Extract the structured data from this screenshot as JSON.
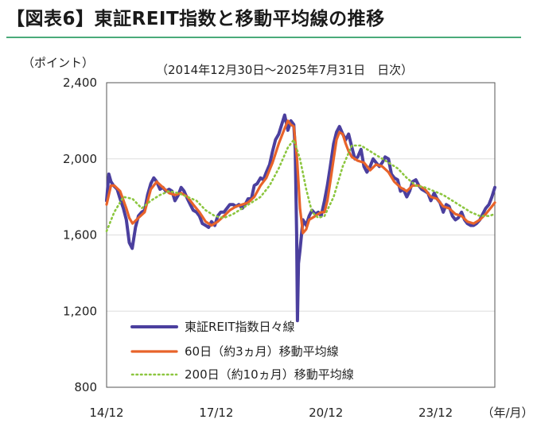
{
  "header": {
    "title": "【図表6】東証REIT指数と移動平均線の推移",
    "y_unit": "（ポイント）",
    "subtitle": "（2014年12月30日～2025年7月31日　日次）"
  },
  "colors": {
    "rule": "#4aaa7a",
    "daily": "#4b3f9e",
    "ma60": "#e8632a",
    "ma200": "#8cc63f"
  },
  "chart_data": {
    "type": "line",
    "title": "東証REIT指数と移動平均線の推移",
    "ylabel": "（ポイント）",
    "xlabel": "（年/月）",
    "ylim": [
      800,
      2400
    ],
    "xlim": [
      2014.96,
      2025.58
    ],
    "yticks": [
      {
        "v": 800,
        "label": "800"
      },
      {
        "v": 1200,
        "label": "1,200"
      },
      {
        "v": 1600,
        "label": "1,600"
      },
      {
        "v": 2000,
        "label": "2,000"
      },
      {
        "v": 2400,
        "label": "2,400"
      }
    ],
    "xticks": [
      {
        "v": 2014.96,
        "label": "14/12"
      },
      {
        "v": 2017.96,
        "label": "17/12"
      },
      {
        "v": 2020.96,
        "label": "20/12"
      },
      {
        "v": 2023.96,
        "label": "23/12"
      }
    ],
    "x_unit_label": "（年/月）",
    "legend": "bottom-left",
    "series": [
      {
        "name": "東証REIT指数日々線",
        "style": "solid-thick",
        "points": [
          [
            2014.96,
            1780
          ],
          [
            2015.02,
            1920
          ],
          [
            2015.08,
            1880
          ],
          [
            2015.15,
            1860
          ],
          [
            2015.25,
            1840
          ],
          [
            2015.33,
            1790
          ],
          [
            2015.42,
            1740
          ],
          [
            2015.5,
            1680
          ],
          [
            2015.58,
            1560
          ],
          [
            2015.66,
            1530
          ],
          [
            2015.75,
            1640
          ],
          [
            2015.83,
            1700
          ],
          [
            2015.92,
            1720
          ],
          [
            2016.0,
            1730
          ],
          [
            2016.08,
            1810
          ],
          [
            2016.17,
            1870
          ],
          [
            2016.25,
            1900
          ],
          [
            2016.33,
            1880
          ],
          [
            2016.42,
            1840
          ],
          [
            2016.5,
            1850
          ],
          [
            2016.58,
            1830
          ],
          [
            2016.67,
            1840
          ],
          [
            2016.75,
            1830
          ],
          [
            2016.83,
            1780
          ],
          [
            2016.92,
            1810
          ],
          [
            2017.0,
            1850
          ],
          [
            2017.08,
            1830
          ],
          [
            2017.17,
            1790
          ],
          [
            2017.25,
            1760
          ],
          [
            2017.33,
            1730
          ],
          [
            2017.42,
            1720
          ],
          [
            2017.5,
            1700
          ],
          [
            2017.58,
            1660
          ],
          [
            2017.67,
            1650
          ],
          [
            2017.75,
            1640
          ],
          [
            2017.83,
            1670
          ],
          [
            2017.92,
            1650
          ],
          [
            2018.0,
            1700
          ],
          [
            2018.08,
            1720
          ],
          [
            2018.17,
            1720
          ],
          [
            2018.25,
            1740
          ],
          [
            2018.33,
            1760
          ],
          [
            2018.42,
            1760
          ],
          [
            2018.5,
            1750
          ],
          [
            2018.58,
            1760
          ],
          [
            2018.67,
            1740
          ],
          [
            2018.75,
            1760
          ],
          [
            2018.83,
            1790
          ],
          [
            2018.92,
            1790
          ],
          [
            2019.0,
            1860
          ],
          [
            2019.08,
            1870
          ],
          [
            2019.17,
            1900
          ],
          [
            2019.25,
            1890
          ],
          [
            2019.33,
            1930
          ],
          [
            2019.42,
            1970
          ],
          [
            2019.5,
            2040
          ],
          [
            2019.58,
            2100
          ],
          [
            2019.67,
            2130
          ],
          [
            2019.75,
            2180
          ],
          [
            2019.83,
            2230
          ],
          [
            2019.92,
            2150
          ],
          [
            2020.0,
            2200
          ],
          [
            2020.08,
            2180
          ],
          [
            2020.12,
            2050
          ],
          [
            2020.16,
            1600
          ],
          [
            2020.18,
            1150
          ],
          [
            2020.21,
            1450
          ],
          [
            2020.25,
            1520
          ],
          [
            2020.33,
            1680
          ],
          [
            2020.42,
            1650
          ],
          [
            2020.5,
            1700
          ],
          [
            2020.58,
            1730
          ],
          [
            2020.67,
            1710
          ],
          [
            2020.75,
            1720
          ],
          [
            2020.83,
            1700
          ],
          [
            2020.92,
            1780
          ],
          [
            2021.0,
            1860
          ],
          [
            2021.08,
            1960
          ],
          [
            2021.17,
            2080
          ],
          [
            2021.25,
            2140
          ],
          [
            2021.33,
            2170
          ],
          [
            2021.42,
            2130
          ],
          [
            2021.5,
            2100
          ],
          [
            2021.58,
            2130
          ],
          [
            2021.67,
            2060
          ],
          [
            2021.75,
            2000
          ],
          [
            2021.83,
            2010
          ],
          [
            2021.92,
            2050
          ],
          [
            2022.0,
            1960
          ],
          [
            2022.08,
            1930
          ],
          [
            2022.17,
            1960
          ],
          [
            2022.25,
            2000
          ],
          [
            2022.33,
            1980
          ],
          [
            2022.42,
            1960
          ],
          [
            2022.5,
            1980
          ],
          [
            2022.58,
            2010
          ],
          [
            2022.67,
            2000
          ],
          [
            2022.75,
            1920
          ],
          [
            2022.83,
            1900
          ],
          [
            2022.92,
            1890
          ],
          [
            2023.0,
            1830
          ],
          [
            2023.08,
            1840
          ],
          [
            2023.17,
            1800
          ],
          [
            2023.25,
            1830
          ],
          [
            2023.33,
            1880
          ],
          [
            2023.42,
            1890
          ],
          [
            2023.5,
            1860
          ],
          [
            2023.58,
            1840
          ],
          [
            2023.67,
            1830
          ],
          [
            2023.75,
            1820
          ],
          [
            2023.83,
            1780
          ],
          [
            2023.92,
            1820
          ],
          [
            2024.0,
            1790
          ],
          [
            2024.08,
            1770
          ],
          [
            2024.17,
            1720
          ],
          [
            2024.25,
            1760
          ],
          [
            2024.33,
            1750
          ],
          [
            2024.42,
            1700
          ],
          [
            2024.5,
            1680
          ],
          [
            2024.58,
            1690
          ],
          [
            2024.67,
            1720
          ],
          [
            2024.75,
            1680
          ],
          [
            2024.83,
            1660
          ],
          [
            2024.92,
            1650
          ],
          [
            2025.0,
            1650
          ],
          [
            2025.08,
            1660
          ],
          [
            2025.17,
            1680
          ],
          [
            2025.25,
            1710
          ],
          [
            2025.33,
            1740
          ],
          [
            2025.42,
            1760
          ],
          [
            2025.5,
            1800
          ],
          [
            2025.58,
            1850
          ]
        ]
      },
      {
        "name": "60日（約3ヵ月）移動平均線",
        "style": "solid",
        "points": [
          [
            2014.96,
            1760
          ],
          [
            2015.08,
            1860
          ],
          [
            2015.17,
            1860
          ],
          [
            2015.33,
            1830
          ],
          [
            2015.5,
            1740
          ],
          [
            2015.58,
            1690
          ],
          [
            2015.67,
            1660
          ],
          [
            2015.83,
            1690
          ],
          [
            2016.0,
            1720
          ],
          [
            2016.17,
            1840
          ],
          [
            2016.33,
            1880
          ],
          [
            2016.5,
            1850
          ],
          [
            2016.67,
            1820
          ],
          [
            2016.83,
            1810
          ],
          [
            2017.0,
            1820
          ],
          [
            2017.17,
            1800
          ],
          [
            2017.33,
            1760
          ],
          [
            2017.5,
            1720
          ],
          [
            2017.67,
            1670
          ],
          [
            2017.83,
            1650
          ],
          [
            2018.0,
            1670
          ],
          [
            2018.17,
            1700
          ],
          [
            2018.33,
            1730
          ],
          [
            2018.5,
            1750
          ],
          [
            2018.67,
            1760
          ],
          [
            2018.83,
            1770
          ],
          [
            2019.0,
            1800
          ],
          [
            2019.17,
            1860
          ],
          [
            2019.33,
            1900
          ],
          [
            2019.5,
            1980
          ],
          [
            2019.67,
            2080
          ],
          [
            2019.83,
            2160
          ],
          [
            2019.92,
            2200
          ],
          [
            2020.0,
            2180
          ],
          [
            2020.08,
            2170
          ],
          [
            2020.17,
            2000
          ],
          [
            2020.25,
            1740
          ],
          [
            2020.33,
            1610
          ],
          [
            2020.42,
            1630
          ],
          [
            2020.5,
            1680
          ],
          [
            2020.67,
            1700
          ],
          [
            2020.83,
            1720
          ],
          [
            2020.92,
            1720
          ],
          [
            2021.0,
            1780
          ],
          [
            2021.08,
            1880
          ],
          [
            2021.17,
            2000
          ],
          [
            2021.25,
            2100
          ],
          [
            2021.33,
            2140
          ],
          [
            2021.42,
            2130
          ],
          [
            2021.5,
            2080
          ],
          [
            2021.58,
            2040
          ],
          [
            2021.67,
            2010
          ],
          [
            2021.83,
            1990
          ],
          [
            2022.0,
            1980
          ],
          [
            2022.17,
            1940
          ],
          [
            2022.33,
            1970
          ],
          [
            2022.5,
            1960
          ],
          [
            2022.67,
            1930
          ],
          [
            2022.83,
            1880
          ],
          [
            2023.0,
            1850
          ],
          [
            2023.17,
            1830
          ],
          [
            2023.33,
            1860
          ],
          [
            2023.5,
            1860
          ],
          [
            2023.67,
            1840
          ],
          [
            2023.83,
            1800
          ],
          [
            2024.0,
            1790
          ],
          [
            2024.17,
            1750
          ],
          [
            2024.33,
            1740
          ],
          [
            2024.5,
            1710
          ],
          [
            2024.67,
            1700
          ],
          [
            2024.83,
            1670
          ],
          [
            2025.0,
            1660
          ],
          [
            2025.17,
            1680
          ],
          [
            2025.33,
            1710
          ],
          [
            2025.5,
            1750
          ],
          [
            2025.58,
            1770
          ]
        ]
      },
      {
        "name": "200日（約10ヵ月）移動平均線",
        "style": "dotted",
        "points": [
          [
            2014.96,
            1620
          ],
          [
            2015.17,
            1720
          ],
          [
            2015.42,
            1800
          ],
          [
            2015.67,
            1790
          ],
          [
            2015.92,
            1740
          ],
          [
            2016.17,
            1780
          ],
          [
            2016.42,
            1810
          ],
          [
            2016.67,
            1830
          ],
          [
            2016.92,
            1820
          ],
          [
            2017.17,
            1800
          ],
          [
            2017.42,
            1780
          ],
          [
            2017.67,
            1730
          ],
          [
            2017.92,
            1700
          ],
          [
            2018.17,
            1690
          ],
          [
            2018.42,
            1710
          ],
          [
            2018.67,
            1740
          ],
          [
            2018.92,
            1770
          ],
          [
            2019.17,
            1800
          ],
          [
            2019.42,
            1860
          ],
          [
            2019.67,
            1950
          ],
          [
            2019.92,
            2060
          ],
          [
            2020.08,
            2100
          ],
          [
            2020.25,
            2000
          ],
          [
            2020.42,
            1840
          ],
          [
            2020.58,
            1720
          ],
          [
            2020.75,
            1690
          ],
          [
            2020.92,
            1700
          ],
          [
            2021.17,
            1800
          ],
          [
            2021.42,
            1960
          ],
          [
            2021.67,
            2070
          ],
          [
            2021.92,
            2070
          ],
          [
            2022.17,
            2040
          ],
          [
            2022.42,
            2010
          ],
          [
            2022.67,
            1980
          ],
          [
            2022.92,
            1950
          ],
          [
            2023.17,
            1900
          ],
          [
            2023.42,
            1860
          ],
          [
            2023.67,
            1850
          ],
          [
            2023.92,
            1830
          ],
          [
            2024.17,
            1810
          ],
          [
            2024.42,
            1780
          ],
          [
            2024.67,
            1750
          ],
          [
            2024.92,
            1720
          ],
          [
            2025.17,
            1700
          ],
          [
            2025.42,
            1700
          ],
          [
            2025.58,
            1710
          ]
        ]
      }
    ]
  }
}
